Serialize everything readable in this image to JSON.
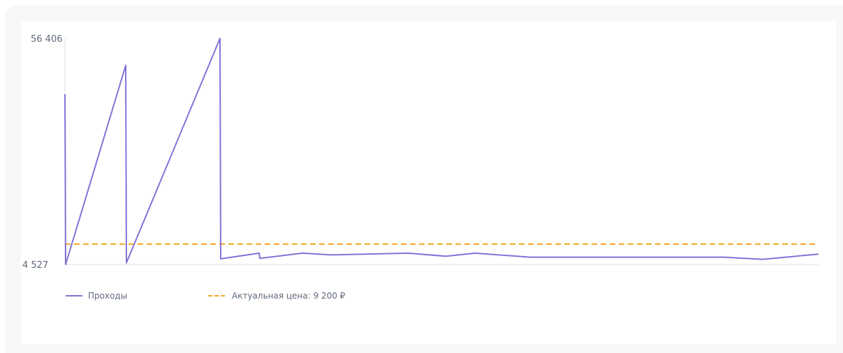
{
  "chart_data": {
    "type": "line",
    "ylim": [
      4527,
      56406
    ],
    "yticks": [
      "56 406",
      "4 527"
    ],
    "series": [
      {
        "name": "Проходы",
        "color": "#8572d8",
        "style": "solid",
        "values": [
          43600,
          4527,
          50200,
          4900,
          56406,
          5800,
          7100,
          5900,
          7100,
          6700,
          7100,
          6400,
          7100,
          6200,
          6200,
          6200,
          5700,
          6900
        ]
      }
    ],
    "reference_lines": [
      {
        "name": "Актуальная цена: 9 200 ₽",
        "value": 9200,
        "color": "#f5a623",
        "style": "dashed"
      }
    ],
    "grid": false,
    "legend_position": "bottom-left"
  }
}
